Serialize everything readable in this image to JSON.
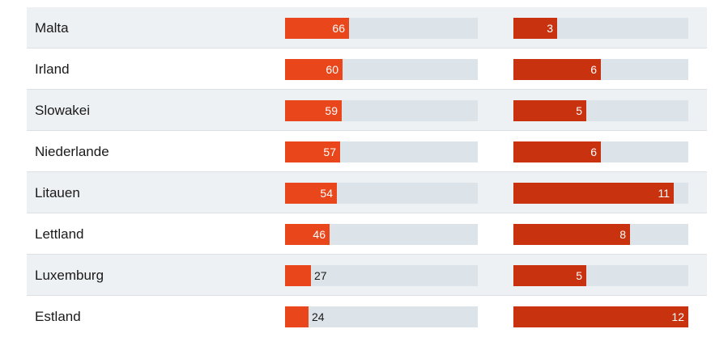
{
  "chart_data": {
    "type": "bar",
    "categories": [
      "Malta",
      "Irland",
      "Slowakei",
      "Niederlande",
      "Litauen",
      "Lettland",
      "Luxemburg",
      "Estland"
    ],
    "series": [
      {
        "values": [
          66,
          60,
          59,
          57,
          54,
          46,
          27,
          24
        ],
        "scale_max": 200,
        "color": "#e9471b"
      },
      {
        "values": [
          3,
          6,
          5,
          6,
          11,
          8,
          5,
          12
        ],
        "scale_max": 12,
        "color": "#c8320f"
      }
    ],
    "title": "",
    "xlabel": "",
    "ylabel": "",
    "grid": false,
    "legend": "none",
    "colors": {
      "row_shade": "#eef1f4",
      "track": "#dde4e9",
      "text": "#1a1a1a"
    }
  }
}
